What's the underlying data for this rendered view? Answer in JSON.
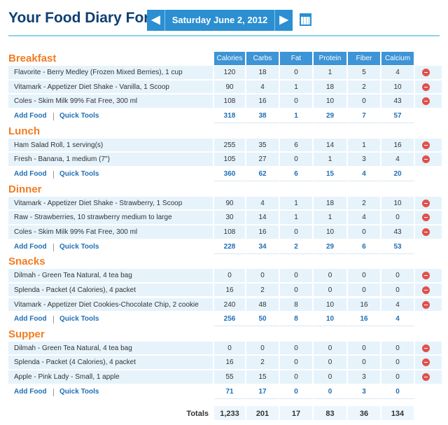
{
  "header": {
    "title": "Your Food Diary For:",
    "date": "Saturday June 2, 2012"
  },
  "columns": [
    "Calories",
    "Carbs",
    "Fat",
    "Protein",
    "Fiber",
    "Calcium"
  ],
  "meals": [
    {
      "name": "Breakfast",
      "entries": [
        {
          "food": "Flavorite - Berry Medley (Frozen Mixed Berries), 1 cup",
          "values": [
            120,
            18,
            0,
            1,
            5,
            4
          ]
        },
        {
          "food": "Vitamark - Appetizer Diet Shake - Vanilla, 1 Scoop",
          "values": [
            90,
            4,
            1,
            18,
            2,
            10
          ]
        },
        {
          "food": "Coles - Skim Milk 99% Fat Free, 300 ml",
          "values": [
            108,
            16,
            0,
            10,
            0,
            43
          ]
        }
      ],
      "add_food": "Add Food",
      "quick_tools": "Quick Tools",
      "totals": [
        318,
        38,
        1,
        29,
        7,
        57
      ]
    },
    {
      "name": "Lunch",
      "entries": [
        {
          "food": "Ham Salad Roll, 1 serving(s)",
          "values": [
            255,
            35,
            6,
            14,
            1,
            16
          ]
        },
        {
          "food": "Fresh - Banana, 1 medium (7\")",
          "values": [
            105,
            27,
            0,
            1,
            3,
            4
          ]
        }
      ],
      "add_food": "Add Food",
      "quick_tools": "Quick Tools",
      "totals": [
        360,
        62,
        6,
        15,
        4,
        20
      ]
    },
    {
      "name": "Dinner",
      "entries": [
        {
          "food": "Vitamark - Appetizer Diet Shake - Strawberry, 1 Scoop",
          "values": [
            90,
            4,
            1,
            18,
            2,
            10
          ]
        },
        {
          "food": "Raw - Strawberries, 10 strawberry medium to large",
          "values": [
            30,
            14,
            1,
            1,
            4,
            0
          ]
        },
        {
          "food": "Coles - Skim Milk 99% Fat Free, 300 ml",
          "values": [
            108,
            16,
            0,
            10,
            0,
            43
          ]
        }
      ],
      "add_food": "Add Food",
      "quick_tools": "Quick Tools",
      "totals": [
        228,
        34,
        2,
        29,
        6,
        53
      ]
    },
    {
      "name": "Snacks",
      "entries": [
        {
          "food": "Dilmah - Green Tea Natural, 4 tea bag",
          "values": [
            0,
            0,
            0,
            0,
            0,
            0
          ]
        },
        {
          "food": "Splenda - Packet (4 Calories), 4 packet",
          "values": [
            16,
            2,
            0,
            0,
            0,
            0
          ]
        },
        {
          "food": "Vitamark - Appetizer Diet Cookies-Chocolate Chip, 2 cookie",
          "values": [
            240,
            48,
            8,
            10,
            16,
            4
          ]
        }
      ],
      "add_food": "Add Food",
      "quick_tools": "Quick Tools",
      "totals": [
        256,
        50,
        8,
        10,
        16,
        4
      ]
    },
    {
      "name": "Supper",
      "entries": [
        {
          "food": "Dilmah - Green Tea Natural, 4 tea bag",
          "values": [
            0,
            0,
            0,
            0,
            0,
            0
          ]
        },
        {
          "food": "Splenda - Packet (4 Calories), 4 packet",
          "values": [
            16,
            2,
            0,
            0,
            0,
            0
          ]
        },
        {
          "food": "Apple - Pink Lady - Small, 1 apple",
          "values": [
            55,
            15,
            0,
            0,
            3,
            0
          ]
        }
      ],
      "add_food": "Add Food",
      "quick_tools": "Quick Tools",
      "totals": [
        71,
        17,
        0,
        0,
        3,
        0
      ]
    }
  ],
  "totals": {
    "label": "Totals",
    "values": [
      "1,233",
      201,
      17,
      83,
      36,
      134
    ]
  }
}
